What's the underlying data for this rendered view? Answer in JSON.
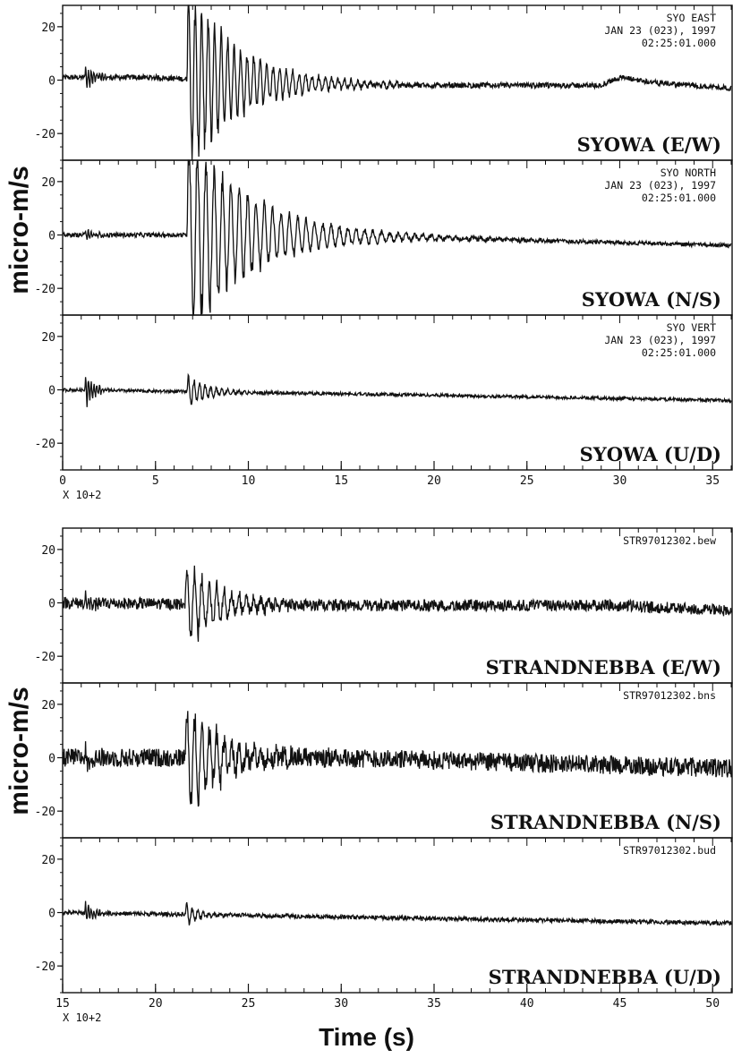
{
  "figure": {
    "ylabel_top": "micro-m/s",
    "ylabel_bottom": "micro-m/s",
    "xlabel": "Time (s)"
  },
  "chart_data": [
    {
      "type": "line",
      "group": "top",
      "x_range": [
        0,
        36
      ],
      "xticks": [
        0,
        5,
        10,
        15,
        20,
        25,
        30,
        35
      ],
      "x_multiplier": "X 10+2",
      "panels": [
        {
          "station_label": "SYOWA (E/W)",
          "header": [
            "SYO  EAST",
            "JAN 23 (023), 1997",
            "02:25:01.000"
          ],
          "ylim": [
            -30,
            28
          ],
          "yticks": [
            20,
            0,
            -20
          ],
          "events": [
            {
              "t": 1.2,
              "amp": 6,
              "decay": 0.5,
              "period": 0.15
            },
            {
              "t": 6.7,
              "amp": 40,
              "decay": 2.8,
              "period": 0.35
            }
          ],
          "noise": 1.0,
          "drift": [
            [
              0,
              1
            ],
            [
              5,
              1
            ],
            [
              10,
              -1
            ],
            [
              20,
              -2
            ],
            [
              29,
              -2
            ],
            [
              30,
              1
            ],
            [
              32,
              -1
            ],
            [
              36,
              -3
            ]
          ]
        },
        {
          "station_label": "SYOWA (N/S)",
          "header": [
            "SYO  NORTH",
            "JAN 23 (023), 1997",
            "02:25:01.000"
          ],
          "ylim": [
            -30,
            28
          ],
          "yticks": [
            20,
            0,
            -20
          ],
          "events": [
            {
              "t": 1.2,
              "amp": 3,
              "decay": 0.5,
              "period": 0.15
            },
            {
              "t": 6.7,
              "amp": 45,
              "decay": 3.5,
              "period": 0.45
            }
          ],
          "noise": 0.8,
          "drift": [
            [
              0,
              0
            ],
            [
              10,
              0
            ],
            [
              20,
              -1
            ],
            [
              36,
              -4
            ]
          ]
        },
        {
          "station_label": "SYOWA (U/D)",
          "header": [
            "SYO  VERT",
            "JAN 23 (023), 1997",
            "02:25:01.000"
          ],
          "ylim": [
            -30,
            28
          ],
          "yticks": [
            20,
            0,
            -20
          ],
          "events": [
            {
              "t": 1.2,
              "amp": 8,
              "decay": 0.5,
              "period": 0.15
            },
            {
              "t": 6.7,
              "amp": 7,
              "decay": 1.2,
              "period": 0.3
            }
          ],
          "noise": 0.6,
          "drift": [
            [
              0,
              0
            ],
            [
              20,
              -2
            ],
            [
              36,
              -4
            ]
          ]
        }
      ]
    },
    {
      "type": "line",
      "group": "bottom",
      "x_range": [
        15,
        51
      ],
      "xticks": [
        15,
        20,
        25,
        30,
        35,
        40,
        45,
        50
      ],
      "x_multiplier": "X 10+2",
      "panels": [
        {
          "station_label": "STRANDNEBBA (E/W)",
          "header": [
            "STR97012302.bew"
          ],
          "ylim": [
            -30,
            28
          ],
          "yticks": [
            20,
            0,
            -20
          ],
          "events": [
            {
              "t": 16.2,
              "amp": 4,
              "decay": 0.5,
              "period": 0.15
            },
            {
              "t": 21.6,
              "amp": 18,
              "decay": 2.0,
              "period": 0.4
            }
          ],
          "noise": 2.2,
          "drift": [
            [
              15,
              0
            ],
            [
              30,
              -1
            ],
            [
              45,
              -1
            ],
            [
              51,
              -3
            ]
          ]
        },
        {
          "station_label": "STRANDNEBBA (N/S)",
          "header": [
            "STR97012302.bns"
          ],
          "ylim": [
            -30,
            28
          ],
          "yticks": [
            20,
            0,
            -20
          ],
          "events": [
            {
              "t": 16.2,
              "amp": 5,
              "decay": 0.5,
              "period": 0.15
            },
            {
              "t": 21.6,
              "amp": 25,
              "decay": 2.0,
              "period": 0.4
            }
          ],
          "noise": 3.5,
          "drift": [
            [
              15,
              0
            ],
            [
              30,
              0
            ],
            [
              51,
              -4
            ]
          ]
        },
        {
          "station_label": "STRANDNEBBA (U/D)",
          "header": [
            "STR97012302.bud"
          ],
          "ylim": [
            -30,
            28
          ],
          "yticks": [
            20,
            0,
            -20
          ],
          "events": [
            {
              "t": 16.2,
              "amp": 5,
              "decay": 0.5,
              "period": 0.15
            },
            {
              "t": 21.6,
              "amp": 5,
              "decay": 0.8,
              "period": 0.3
            }
          ],
          "noise": 0.8,
          "drift": [
            [
              15,
              0
            ],
            [
              51,
              -4
            ]
          ]
        }
      ]
    }
  ]
}
